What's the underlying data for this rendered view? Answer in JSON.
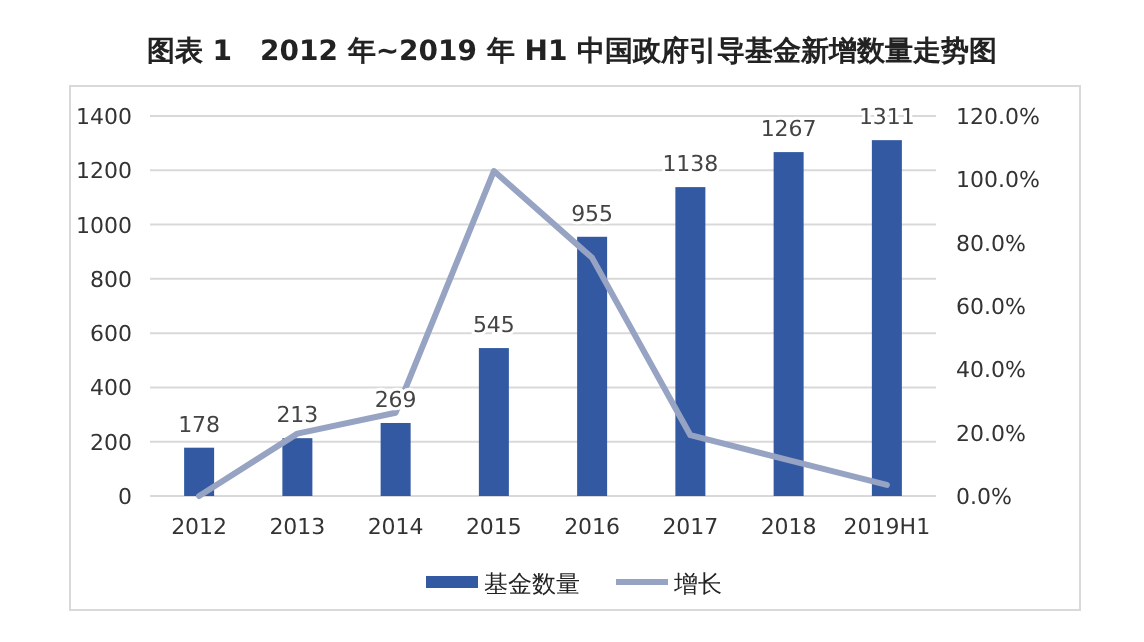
{
  "chart_data": {
    "type": "bar",
    "title": "图表 1　2012 年~2019 年 H1 中国政府引导基金新增数量走势图",
    "categories": [
      "2012",
      "2013",
      "2014",
      "2015",
      "2016",
      "2017",
      "2018",
      "2019H1"
    ],
    "series": [
      {
        "name": "基金数量",
        "color": "#3259a2",
        "values": [
          178,
          213,
          269,
          545,
          955,
          1138,
          1267,
          1311
        ],
        "data_labels": true
      },
      {
        "name": "增长",
        "type": "line",
        "axis": "y2",
        "color": "#97a3c2",
        "values": [
          0,
          19.7,
          26.3,
          102.6,
          75.2,
          19.2,
          11.3,
          3.5
        ]
      }
    ],
    "ylim": [
      0,
      1400
    ],
    "yticks": [
      0,
      200,
      400,
      600,
      800,
      1000,
      1200,
      1400
    ],
    "y2lim": [
      0,
      120
    ],
    "y2ticks": [
      {
        "value": 0,
        "label": "0.0%"
      },
      {
        "value": 20,
        "label": "20.0%"
      },
      {
        "value": 40,
        "label": "40.0%"
      },
      {
        "value": 60,
        "label": "60.0%"
      },
      {
        "value": 80,
        "label": "80.0%"
      },
      {
        "value": 100,
        "label": "100.0%"
      },
      {
        "value": 120,
        "label": "120.0%"
      }
    ],
    "grid": "y",
    "legend": "bottom",
    "marker": "none",
    "line_style": "solid"
  }
}
